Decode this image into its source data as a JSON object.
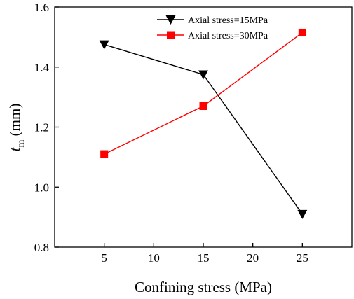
{
  "chart_data": {
    "type": "line",
    "x": [
      5,
      15,
      25
    ],
    "xlabel": "Confining stress (MPa)",
    "ylabel": {
      "main": "t",
      "sub": "m",
      "unit": " (mm)"
    },
    "xlim": [
      0,
      30
    ],
    "ylim": [
      0.8,
      1.6
    ],
    "xticks": [
      5,
      10,
      15,
      20,
      25
    ],
    "yticks": [
      0.8,
      1.0,
      1.2,
      1.4,
      1.6
    ],
    "ytick_labels": [
      "0.8",
      "1.0",
      "1.2",
      "1.4",
      "1.6"
    ],
    "grid": false,
    "legend_position": "top-right",
    "series": [
      {
        "name": "Axial stress=15MPa",
        "values": [
          1.475,
          1.375,
          0.91
        ],
        "color": "#000000",
        "marker": "triangle-down"
      },
      {
        "name": "Axial stress=30MPa",
        "values": [
          1.11,
          1.27,
          1.515
        ],
        "color": "#ff0000",
        "marker": "square"
      }
    ]
  }
}
